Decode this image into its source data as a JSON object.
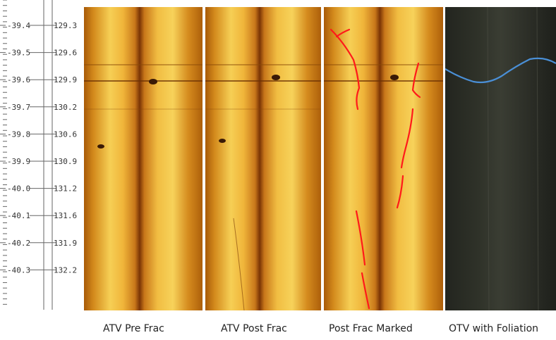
{
  "depth_track": {
    "left_scale": [
      "-39.4",
      "-39.5",
      "-39.6",
      "-39.7",
      "-39.8",
      "-39.9",
      "-40.0",
      "-40.1",
      "-40.2",
      "-40.3"
    ],
    "right_scale": [
      "129.3",
      "129.6",
      "129.9",
      "130.2",
      "130.6",
      "130.9",
      "131.2",
      "131.6",
      "131.9",
      "132.2"
    ]
  },
  "panels": [
    {
      "caption": "ATV Pre Frac"
    },
    {
      "caption": "ATV Post Frac"
    },
    {
      "caption": "Post Frac Marked"
    },
    {
      "caption": "OTV with Foliation"
    }
  ],
  "colors": {
    "atv_light": "#f4c64a",
    "atv_dark": "#b25e08",
    "fracture_marker": "#ff1a1a",
    "foliation_line": "#4a8fd6",
    "otv_base": "#2d2f28"
  }
}
